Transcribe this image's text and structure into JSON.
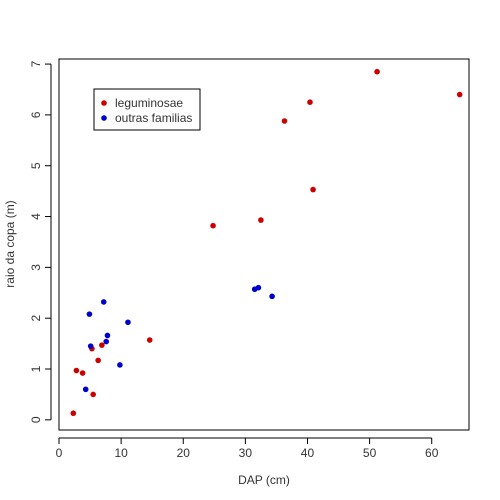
{
  "chart_data": {
    "type": "scatter",
    "xlabel": "DAP (cm)",
    "ylabel": "raio da copa (m)",
    "xlim": [
      0,
      66
    ],
    "ylim": [
      -0.2,
      7.1
    ],
    "x_ticks": [
      0,
      10,
      20,
      30,
      40,
      50,
      60
    ],
    "y_ticks": [
      0,
      1,
      2,
      3,
      4,
      5,
      6,
      7
    ],
    "grid": false,
    "legend_position": "top-left",
    "series": [
      {
        "name": "leguminosae",
        "color": "#cc0000",
        "points": [
          [
            2.3,
            0.13
          ],
          [
            2.8,
            0.97
          ],
          [
            3.8,
            0.92
          ],
          [
            5.3,
            1.4
          ],
          [
            5.5,
            0.5
          ],
          [
            6.3,
            1.17
          ],
          [
            6.9,
            1.47
          ],
          [
            14.6,
            1.57
          ],
          [
            24.8,
            3.82
          ],
          [
            32.5,
            3.93
          ],
          [
            36.3,
            5.88
          ],
          [
            40.4,
            6.25
          ],
          [
            40.9,
            4.53
          ],
          [
            51.2,
            6.85
          ],
          [
            64.5,
            6.4
          ]
        ]
      },
      {
        "name": "outras familias",
        "color": "#0000cc",
        "points": [
          [
            4.3,
            0.6
          ],
          [
            4.9,
            2.08
          ],
          [
            5.1,
            1.45
          ],
          [
            7.2,
            2.32
          ],
          [
            7.6,
            1.54
          ],
          [
            7.8,
            1.66
          ],
          [
            9.8,
            1.08
          ],
          [
            11.1,
            1.92
          ],
          [
            31.5,
            2.57
          ],
          [
            32.1,
            2.6
          ],
          [
            34.3,
            2.43
          ]
        ]
      }
    ]
  }
}
